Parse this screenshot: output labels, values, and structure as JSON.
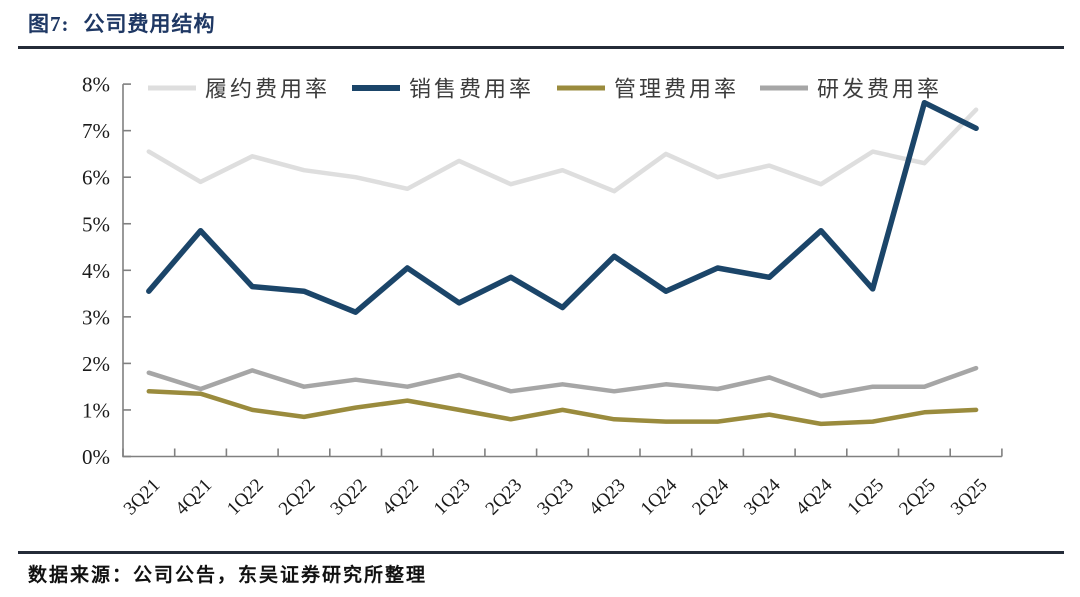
{
  "figure": {
    "label": "图7:",
    "title": "公司费用结构"
  },
  "source_note": "数据来源：公司公告，东吴证券研究所整理",
  "chart_data": {
    "type": "line",
    "title": "公司费用结构",
    "categories": [
      "3Q21",
      "4Q21",
      "1Q22",
      "2Q22",
      "3Q22",
      "4Q22",
      "1Q23",
      "2Q23",
      "3Q23",
      "4Q23",
      "1Q24",
      "2Q24",
      "3Q24",
      "4Q24",
      "1Q25",
      "2Q25",
      "3Q25"
    ],
    "series": [
      {
        "key": "fulfillment-expense-ratio",
        "name": "履约费用率",
        "color": "#dedede",
        "width": 4.5,
        "values": [
          6.55,
          5.9,
          6.45,
          6.15,
          6.0,
          5.75,
          6.35,
          5.85,
          6.15,
          5.7,
          6.5,
          6.0,
          6.25,
          5.85,
          6.55,
          6.3,
          7.45
        ]
      },
      {
        "key": "selling-expense-ratio",
        "name": "销售费用率",
        "color": "#1b4569",
        "width": 5.5,
        "values": [
          3.55,
          4.85,
          3.65,
          3.55,
          3.1,
          4.05,
          3.3,
          3.85,
          3.2,
          4.3,
          3.55,
          4.05,
          3.85,
          4.85,
          3.6,
          7.6,
          7.05
        ]
      },
      {
        "key": "admin-expense-ratio",
        "name": "管理费用率",
        "color": "#9a8b3d",
        "width": 4.5,
        "values": [
          1.4,
          1.35,
          1.0,
          0.85,
          1.05,
          1.2,
          1.0,
          0.8,
          1.0,
          0.8,
          0.75,
          0.75,
          0.9,
          0.7,
          0.75,
          0.95,
          1.0
        ]
      },
      {
        "key": "rd-expense-ratio",
        "name": "研发费用率",
        "color": "#a6a6a6",
        "width": 4.5,
        "values": [
          1.8,
          1.45,
          1.85,
          1.5,
          1.65,
          1.5,
          1.75,
          1.4,
          1.55,
          1.4,
          1.55,
          1.45,
          1.7,
          1.3,
          1.5,
          1.5,
          1.9
        ]
      }
    ],
    "xlabel": "",
    "ylabel": "",
    "ylim": [
      0,
      8
    ],
    "y_tick_labels": [
      "0%",
      "1%",
      "2%",
      "3%",
      "4%",
      "5%",
      "6%",
      "7%",
      "8%"
    ],
    "legend_position": "top",
    "grid": false
  },
  "colors": {
    "title": "#1f3864",
    "rule": "#242b38",
    "axis": "#808080",
    "tick_label": "#1a1a1a",
    "legend_label": "#3c3c3c",
    "background": "#ffffff"
  }
}
